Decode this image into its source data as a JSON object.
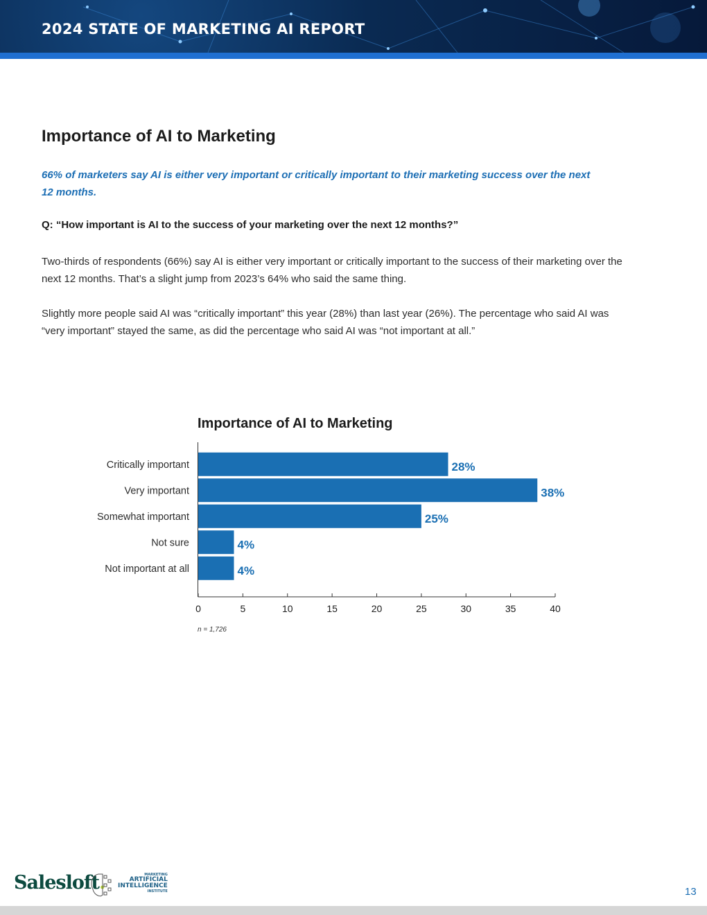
{
  "header": {
    "title": "2024 STATE OF MARKETING AI REPORT"
  },
  "page": {
    "title": "Importance of AI to Marketing",
    "lead": "66% of marketers say AI is either very important or critically important to their marketing success over the next 12 months.",
    "question": "Q: “How important is AI to the success of your marketing over the next 12 months?”",
    "paragraphs": [
      "Two-thirds of respondents (66%) say AI is either very important or critically important to the success of their marketing over the next 12 months. That’s a slight jump from 2023’s 64% who said the same thing.",
      "Slightly more people said AI was “critically important” this year (28%) than last year (26%). The percentage who said AI was “very important” stayed the same, as did the percentage who said AI was “not important at all.”"
    ]
  },
  "chart_data": {
    "type": "bar",
    "orientation": "horizontal",
    "title": "Importance of AI to Marketing",
    "categories": [
      "Critically important",
      "Very important",
      "Somewhat important",
      "Not sure",
      "Not important at all"
    ],
    "values": [
      28,
      38,
      25,
      4,
      4
    ],
    "data_labels": [
      "28%",
      "38%",
      "25%",
      "4%",
      "4%"
    ],
    "xlim": [
      0,
      40
    ],
    "xticks": [
      0,
      5,
      10,
      15,
      20,
      25,
      30,
      35,
      40
    ],
    "note": "n = 1,726",
    "bar_color": "#1a6fb3",
    "label_color": "#1a6fb3",
    "grid": false
  },
  "footer": {
    "page_number": "13",
    "logo_salesloft": "Salesloft",
    "logo_dot": ".",
    "logo_maii_lines": [
      "MARKETING",
      "ARTIFICIAL",
      "INTELLIGENCE",
      "INSTITUTE"
    ]
  },
  "colors": {
    "accent": "#1c6eb4",
    "header_dark": "#0a2a52",
    "header_stripe": "#1f6fd1"
  }
}
